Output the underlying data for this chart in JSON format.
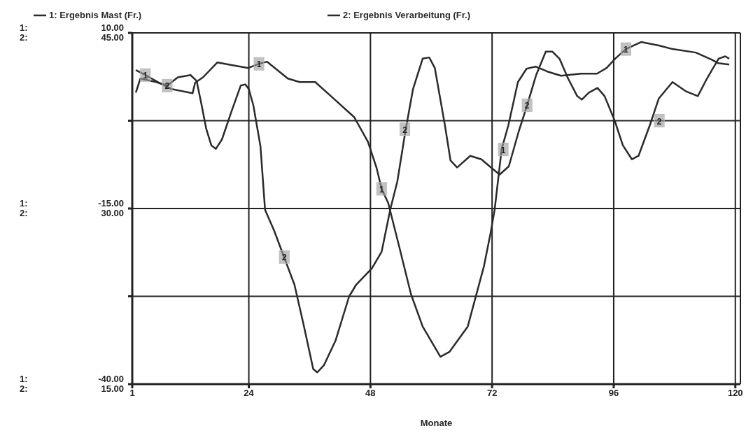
{
  "chart_data": {
    "type": "line",
    "xlabel": "Monate",
    "legend": "top",
    "grid": true,
    "marker": "none",
    "line_style": "solid",
    "xlim": [
      1,
      121
    ],
    "xticks": [
      1,
      24,
      48,
      72,
      96,
      120
    ],
    "ylim": [
      -40,
      10
    ],
    "yticks": [
      {
        "value": -40,
        "label": "-40.00"
      },
      {
        "value": -27.5,
        "label": null
      },
      {
        "value": -15,
        "label": "-15.00"
      },
      {
        "value": -2.5,
        "label": null
      },
      {
        "value": 10,
        "label": "10.00"
      }
    ],
    "y2lim": [
      15,
      45
    ],
    "y2ticks": [
      {
        "value": 15,
        "label": "15.00"
      },
      {
        "value": 30,
        "label": "30.00"
      },
      {
        "value": 45,
        "label": "45.00"
      }
    ],
    "annotations": [
      "1:",
      "2:",
      "1:",
      "2:",
      "1:",
      "2:",
      {
        "text": "1",
        "x": 3.6,
        "y": 4.0
      },
      {
        "text": "1",
        "x": 26.0,
        "y": 5.6
      },
      {
        "text": "1",
        "x": 50.2,
        "y": -12.2
      },
      {
        "text": "1",
        "x": 74.2,
        "y": -6.6
      },
      {
        "text": "1",
        "x": 98.4,
        "y": 7.7
      },
      {
        "text": "2",
        "x": 7.9,
        "y": 2.5
      },
      {
        "text": "2",
        "x": 31.0,
        "y": -21.9
      },
      {
        "text": "2",
        "x": 54.8,
        "y": -3.7
      },
      {
        "text": "2",
        "x": 78.9,
        "y": -0.3
      },
      {
        "text": "2",
        "x": 105.0,
        "y": -2.5
      }
    ],
    "series": [
      {
        "name": "1: Ergebnis Mast (Fr.)",
        "color": "#2b2b2b",
        "axis": "y",
        "x": [
          1.7,
          3.6,
          6.3,
          8.8,
          12.9,
          13.4,
          15.0,
          17.8,
          20.8,
          23.9,
          26.0,
          27.6,
          31.7,
          34.0,
          37.1,
          40.2,
          44.8,
          47.5,
          49.2,
          50.2,
          51.5,
          53.7,
          56.0,
          58.3,
          61.8,
          63.6,
          67.2,
          70.4,
          71.7,
          72.5,
          73.9,
          75.2,
          77.1,
          78.8,
          80.6,
          82.9,
          85.6,
          89.6,
          92.7,
          94.6,
          96.4,
          98.4,
          101.4,
          104.9,
          107.6,
          112.2,
          115.3,
          116.6,
          118.8
        ],
        "values": [
          4.7,
          4.0,
          2.9,
          2.0,
          1.4,
          2.9,
          3.7,
          5.8,
          5.4,
          5.0,
          5.6,
          5.9,
          3.5,
          3.0,
          3.0,
          1.0,
          -2.0,
          -5.5,
          -9.2,
          -12.2,
          -14.2,
          -20.5,
          -27.2,
          -31.8,
          -36.1,
          -35.4,
          -31.8,
          -23.2,
          -18.5,
          -15.2,
          -6.5,
          -3.2,
          3.0,
          4.9,
          5.2,
          4.5,
          3.9,
          4.2,
          4.2,
          5.0,
          6.4,
          7.7,
          8.7,
          8.2,
          7.7,
          7.2,
          6.2,
          5.7,
          5.5
        ]
      },
      {
        "name": "2: Ergebnis Verarbeitung (Fr.)",
        "color": "#2b2b2b",
        "axis": "y2",
        "x": [
          1.7,
          2.6,
          5.7,
          7.9,
          10.0,
          12.5,
          13.7,
          14.7,
          15.6,
          16.6,
          17.5,
          18.7,
          20.5,
          22.4,
          23.3,
          24.0,
          24.9,
          26.3,
          27.2,
          29.0,
          31.0,
          33.0,
          34.8,
          36.7,
          37.5,
          38.8,
          41.1,
          43.8,
          45.2,
          48.3,
          50.2,
          51.9,
          53.3,
          54.9,
          56.4,
          58.3,
          59.6,
          60.7,
          62.7,
          63.8,
          65.1,
          67.7,
          69.9,
          71.8,
          73.5,
          75.3,
          77.2,
          78.9,
          80.7,
          82.6,
          83.9,
          85.3,
          87.0,
          88.8,
          89.7,
          91.1,
          92.8,
          94.2,
          96.2,
          97.8,
          99.6,
          100.9,
          103.2,
          104.9,
          107.6,
          110.3,
          112.6,
          114.4,
          116.7,
          118.0,
          118.8
        ],
        "values": [
          39.9,
          41.1,
          40.8,
          40.5,
          41.2,
          41.4,
          40.9,
          38.8,
          36.8,
          35.4,
          35.1,
          35.9,
          38.2,
          40.5,
          40.6,
          40.2,
          38.8,
          35.3,
          29.9,
          28.1,
          25.8,
          23.5,
          20.1,
          16.3,
          16.0,
          16.6,
          18.7,
          22.5,
          23.5,
          24.9,
          26.3,
          29.9,
          32.3,
          36.6,
          40.2,
          42.8,
          42.9,
          42.0,
          37.1,
          34.1,
          33.5,
          34.5,
          34.2,
          33.5,
          32.9,
          33.6,
          36.5,
          38.8,
          41.4,
          43.4,
          43.4,
          42.8,
          41.1,
          39.6,
          39.3,
          39.9,
          40.3,
          39.6,
          37.5,
          35.4,
          34.2,
          34.5,
          37.2,
          39.4,
          40.8,
          40.0,
          39.6,
          41.1,
          42.8,
          43.0,
          42.8
        ]
      }
    ]
  }
}
